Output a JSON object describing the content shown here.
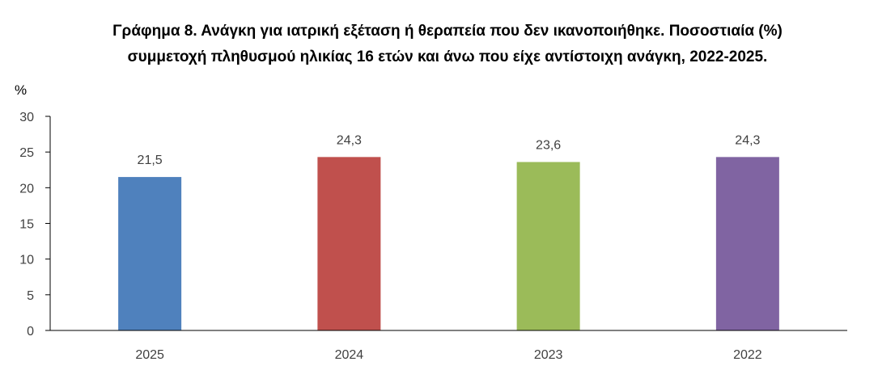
{
  "chart_data": {
    "type": "bar",
    "title_lines": [
      "Γράφημα 8. Ανάγκη για ιατρική εξέταση ή θεραπεία που δεν ικανοποιήθηκε. Ποσοστιαία (%)",
      "συμμετοχή πληθυσμού ηλικίας 16 ετών και άνω που είχε αντίστοιχη ανάγκη, 2022-2025."
    ],
    "ylabel": "%",
    "categories": [
      "2025",
      "2024",
      "2023",
      "2022"
    ],
    "values": [
      21.5,
      24.3,
      23.6,
      24.3
    ],
    "data_labels": [
      "21,5",
      "24,3",
      "23,6",
      "24,3"
    ],
    "colors": [
      "#4F81BD",
      "#C0504D",
      "#9BBB59",
      "#8064A2"
    ],
    "ylim": [
      0,
      30
    ],
    "yticks": [
      0,
      5,
      10,
      15,
      20,
      25,
      30
    ],
    "grid": false,
    "legend": "none"
  }
}
